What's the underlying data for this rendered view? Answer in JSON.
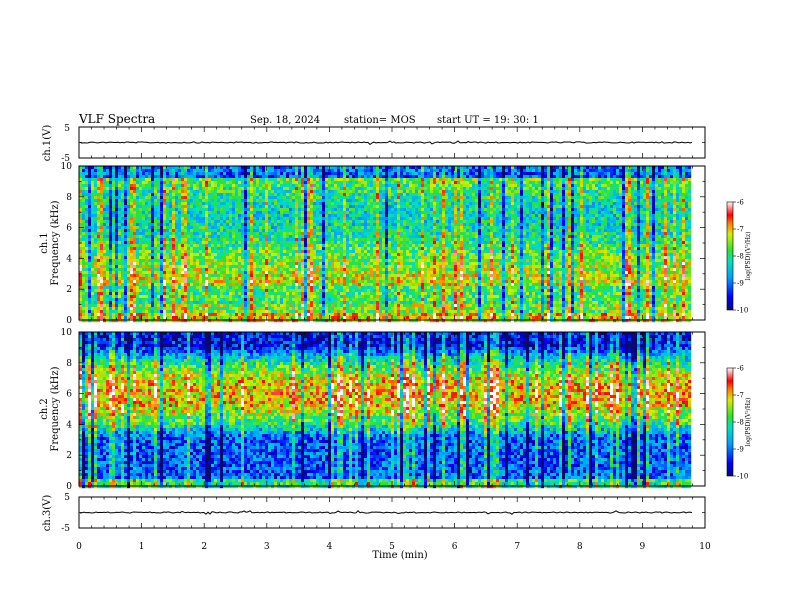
{
  "header": {
    "title": "VLF Spectra",
    "date": "Sep. 18, 2024",
    "station": "station= MOS",
    "start": "start  UT  =    19: 30: 1"
  },
  "chart_data": [
    {
      "type": "line",
      "name": "ch1-voltage",
      "ylabel": "ch.1(V)",
      "ylim": [
        -5,
        5
      ],
      "yticks": [
        "5",
        "-5"
      ],
      "xlim": [
        0,
        10
      ],
      "trace_level": 0
    },
    {
      "type": "heatmap",
      "name": "ch1-spectrogram",
      "ylabel_lines": [
        "ch.1",
        "Frequency (kHz)"
      ],
      "ylim": [
        0,
        10
      ],
      "yticks": [
        "0",
        "2",
        "4",
        "6",
        "8",
        "10"
      ],
      "xlim": [
        0,
        10
      ],
      "data_end_min": 9.8,
      "band_kHz": [
        0,
        10
      ],
      "colorbar": {
        "ticks": [
          "-6",
          "-7",
          "-8",
          "-9",
          "-10"
        ],
        "label": "log(PSD)(V²/Hz)",
        "range": [
          -10,
          -6
        ]
      }
    },
    {
      "type": "heatmap",
      "name": "ch2-spectrogram",
      "ylabel_lines": [
        "ch.2",
        "Frequency (kHz)"
      ],
      "ylim": [
        0,
        10
      ],
      "yticks": [
        "0",
        "2",
        "4",
        "6",
        "8",
        "10"
      ],
      "xlim": [
        0,
        10
      ],
      "data_end_min": 9.8,
      "band_kHz": [
        4,
        8
      ],
      "colorbar": {
        "ticks": [
          "-6",
          "-7",
          "-8",
          "-9",
          "-10"
        ],
        "label": "log(PSD)(V²/Hz)",
        "range": [
          -10,
          -6
        ]
      }
    },
    {
      "type": "line",
      "name": "ch3-voltage",
      "ylabel": "ch.3(V)",
      "ylim": [
        -5,
        5
      ],
      "yticks": [
        "5",
        "-5"
      ],
      "xlim": [
        0,
        10
      ],
      "xlabel": "Time (min)",
      "xticks": [
        "0",
        "1",
        "2",
        "3",
        "4",
        "5",
        "6",
        "7",
        "8",
        "9",
        "10"
      ],
      "trace_level": 0
    }
  ],
  "colors": {
    "psd_scale": [
      "#0a0a6e",
      "#0000ff",
      "#00a0ff",
      "#00e0c0",
      "#30e030",
      "#d0f000",
      "#ff8000",
      "#ff0000",
      "#ffffff"
    ],
    "trace": "#000000"
  }
}
